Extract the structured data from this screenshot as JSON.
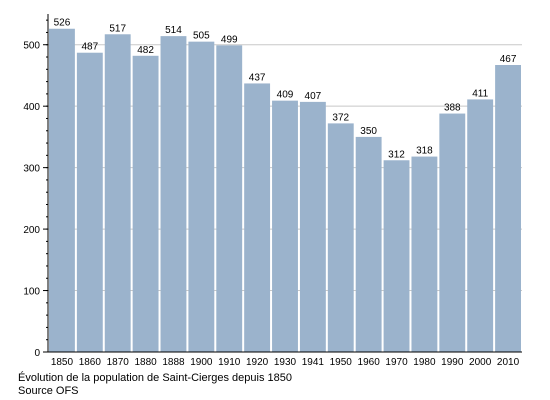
{
  "chart_data": {
    "type": "bar",
    "categories": [
      "1850",
      "1860",
      "1870",
      "1880",
      "1888",
      "1900",
      "1910",
      "1920",
      "1930",
      "1941",
      "1950",
      "1960",
      "1970",
      "1980",
      "1990",
      "2000",
      "2010"
    ],
    "values": [
      526,
      487,
      517,
      482,
      514,
      505,
      499,
      437,
      409,
      407,
      372,
      350,
      312,
      318,
      388,
      411,
      467
    ],
    "ylim": [
      0,
      550
    ],
    "yticks": [
      0,
      100,
      200,
      300,
      400,
      500
    ],
    "grid": true,
    "bar_color": "#9bb3cc",
    "title": "",
    "xlabel": "",
    "ylabel": ""
  },
  "caption": {
    "line1": "Évolution de la population de Saint-Cierges depuis 1850",
    "line2": "Source OFS"
  }
}
